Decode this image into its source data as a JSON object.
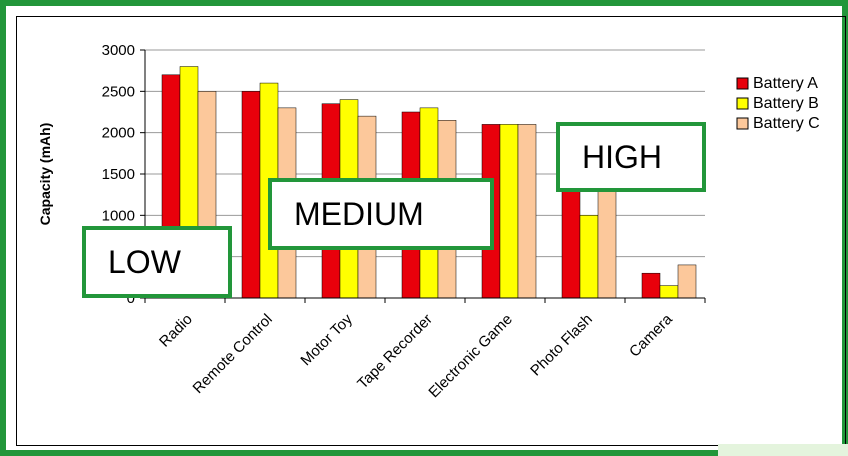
{
  "chart_data": {
    "type": "bar",
    "title": "",
    "xlabel": "",
    "ylabel": "Capacity (mAh)",
    "ylim": [
      0,
      3000
    ],
    "yticks": [
      "0",
      "500",
      "1000",
      "1500",
      "2000",
      "2500",
      "3000"
    ],
    "grid": true,
    "legend_position": "right",
    "categories": [
      "Radio",
      "Remote Control",
      "Motor Toy",
      "Tape Recorder",
      "Electronic Game",
      "Photo Flash",
      "Camera"
    ],
    "series": [
      {
        "name": "Battery A",
        "color": "#e8000b",
        "values": [
          2700,
          2500,
          2350,
          2250,
          2100,
          1550,
          300
        ]
      },
      {
        "name": "Battery B",
        "color": "#ffff00",
        "values": [
          2800,
          2600,
          2400,
          2300,
          2100,
          1000,
          150
        ]
      },
      {
        "name": "Battery C",
        "color": "#fcc89b",
        "values": [
          2500,
          2300,
          2200,
          2150,
          2100,
          1450,
          400
        ]
      }
    ]
  },
  "annotations": {
    "low": "LOW",
    "medium": "MEDIUM",
    "high": "HIGH"
  },
  "colors": {
    "frame": "#22963a",
    "gridline": "#9a9a9a",
    "accent": "#e4f4dd"
  }
}
